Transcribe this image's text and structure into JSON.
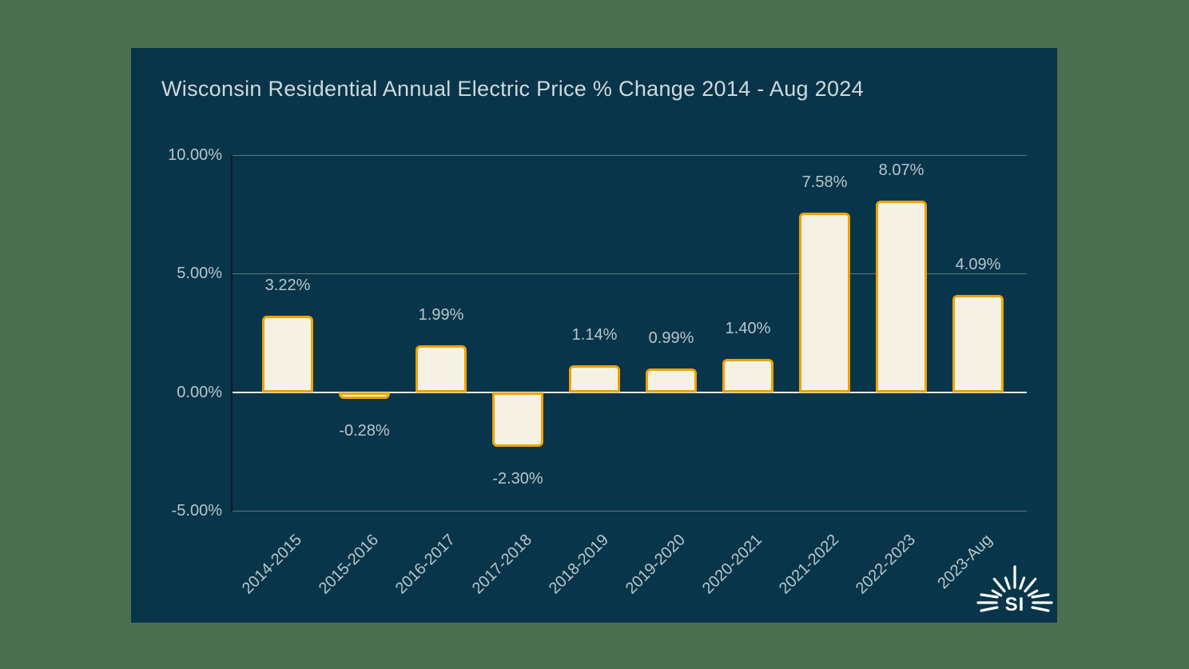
{
  "page": {
    "background_color": "#4a7050"
  },
  "panel": {
    "background_color": "#083549"
  },
  "header": {
    "title": "Wisconsin Residential Annual Electric Price % Change 2014 - Aug 2024"
  },
  "chart_data": {
    "type": "bar",
    "title": "Wisconsin Residential Annual Electric Price % Change 2014 - Aug 2024",
    "categories": [
      "2014-2015",
      "2015-2016",
      "2016-2017",
      "2017-2018",
      "2018-2019",
      "2019-2020",
      "2020-2021",
      "2021-2022",
      "2022-2023",
      "2023-Aug"
    ],
    "values": [
      3.22,
      -0.28,
      1.99,
      -2.3,
      1.14,
      0.99,
      1.4,
      7.58,
      8.07,
      4.09
    ],
    "value_labels": [
      "3.22%",
      "-0.28%",
      "1.99%",
      "-2.30%",
      "1.14%",
      "0.99%",
      "1.40%",
      "7.58%",
      "8.07%",
      "4.09%"
    ],
    "xlabel": "",
    "ylabel": "",
    "ylim": [
      -5,
      10
    ],
    "y_axis": {
      "min": -5,
      "max": 10,
      "ticks": [
        {
          "value": 10,
          "label": "10.00%"
        },
        {
          "value": 5,
          "label": "5.00%"
        },
        {
          "value": 0,
          "label": "0.00%"
        },
        {
          "value": -5,
          "label": "-5.00%"
        }
      ]
    },
    "grid": "horizontal gridlines at each y tick, zero line emphasized",
    "legend": "none",
    "colors": {
      "bar_fill": "#f5f2e3",
      "bar_border": "#f0a202",
      "title_text": "#cfd9dd",
      "label_text": "#b9c6cc",
      "gridline": "#5d7682",
      "zero_line": "#e3eaed",
      "axis_line": "#0a1e29"
    }
  },
  "logo": {
    "text": "SI"
  }
}
